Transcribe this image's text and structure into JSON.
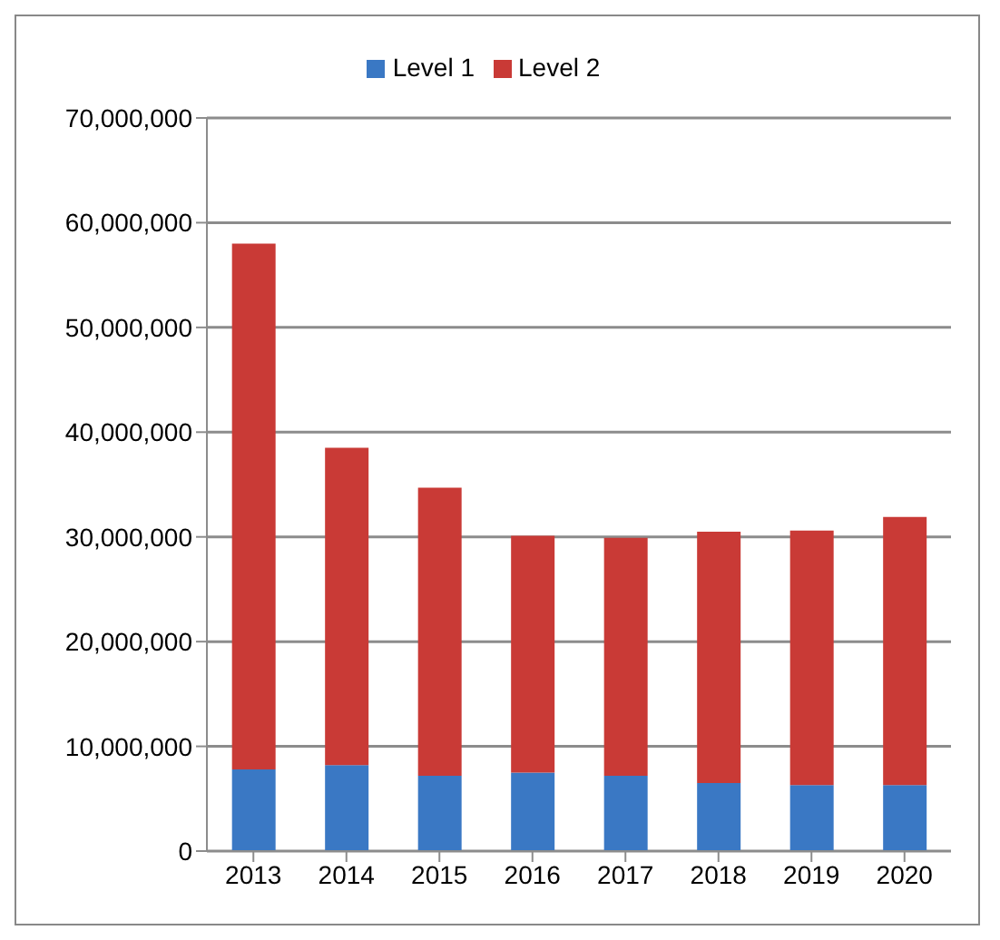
{
  "chart_data": {
    "type": "bar",
    "stacked": true,
    "categories": [
      "2013",
      "2014",
      "2015",
      "2016",
      "2017",
      "2018",
      "2019",
      "2020"
    ],
    "series": [
      {
        "name": "Level 1",
        "color": "#3a78c4",
        "values": [
          7800000,
          8200000,
          7200000,
          7500000,
          7200000,
          6500000,
          6300000,
          6300000
        ]
      },
      {
        "name": "Level 2",
        "color": "#c93a36",
        "values": [
          50200000,
          30300000,
          27500000,
          22600000,
          22700000,
          24000000,
          24300000,
          25600000
        ]
      }
    ],
    "ylim": [
      0,
      70000000
    ],
    "yticks": [
      0,
      {
        "value": 10000000,
        "label": "10,000,000"
      },
      {
        "value": 20000000,
        "label": "20,000,000"
      },
      {
        "value": 30000000,
        "label": "30,000,000"
      },
      {
        "value": 40000000,
        "label": "40,000,000"
      },
      {
        "value": 50000000,
        "label": "50,000,000"
      },
      {
        "value": 60000000,
        "label": "60,000,000"
      },
      {
        "value": 70000000,
        "label": "70,000,000"
      }
    ],
    "grid": "y",
    "legend": "top"
  }
}
